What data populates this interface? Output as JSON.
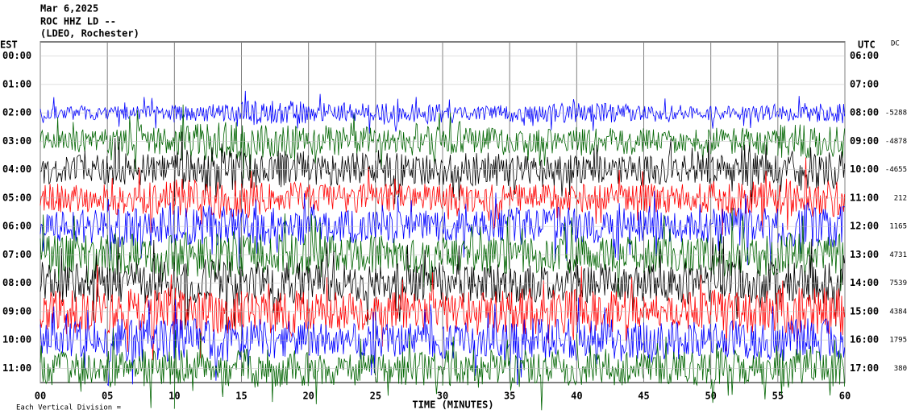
{
  "chart_data": {
    "type": "helicorder",
    "title_lines": [
      "Mar 6,2025",
      "ROC HHZ LD --",
      "(LDEO, Rochester)"
    ],
    "left_axis_title": "EST",
    "right_axis_title": "UTC",
    "dc_title": "DC",
    "x_title": "TIME (MINUTES)",
    "footer": "Each Vertical Division =",
    "xticks": [
      {
        "value": 0,
        "label": "00"
      },
      {
        "value": 5,
        "label": "05"
      },
      10,
      15,
      20,
      25,
      30,
      35,
      40,
      45,
      50,
      55,
      60
    ],
    "xlim": [
      0,
      60
    ],
    "rows": [
      {
        "est": "00:00",
        "utc": "06:00",
        "dc": null,
        "color": "#000000",
        "amplitude": null
      },
      {
        "est": "01:00",
        "utc": "07:00",
        "dc": null,
        "color": "#ff0000",
        "amplitude": null
      },
      {
        "est": "02:00",
        "utc": "08:00",
        "dc": "-5288",
        "color": "#0000ff",
        "amplitude": [
          3,
          3,
          4,
          5,
          4,
          4,
          3,
          4,
          4,
          3,
          3,
          4
        ]
      },
      {
        "est": "03:00",
        "utc": "09:00",
        "dc": "-4878",
        "color": "#006400",
        "amplitude": [
          5,
          6,
          8,
          7,
          6,
          6,
          6,
          5,
          6,
          5,
          6,
          7
        ]
      },
      {
        "est": "04:00",
        "utc": "10:00",
        "dc": "-4655",
        "color": "#000000",
        "amplitude": [
          6,
          7,
          9,
          8,
          7,
          7,
          7,
          6,
          6,
          6,
          7,
          8
        ]
      },
      {
        "est": "05:00",
        "utc": "11:00",
        "dc": "212",
        "color": "#ff0000",
        "amplitude": [
          6,
          7,
          8,
          7,
          6,
          6,
          6,
          6,
          6,
          6,
          7,
          8
        ]
      },
      {
        "est": "06:00",
        "utc": "12:00",
        "dc": "1165",
        "color": "#0000ff",
        "amplitude": [
          7,
          8,
          9,
          8,
          7,
          7,
          7,
          8,
          7,
          7,
          8,
          9
        ]
      },
      {
        "est": "07:00",
        "utc": "13:00",
        "dc": "4731",
        "color": "#006400",
        "amplitude": [
          8,
          9,
          10,
          9,
          8,
          8,
          8,
          8,
          8,
          8,
          9,
          9
        ]
      },
      {
        "est": "08:00",
        "utc": "14:00",
        "dc": "7539",
        "color": "#000000",
        "amplitude": [
          8,
          9,
          10,
          9,
          8,
          8,
          8,
          8,
          8,
          8,
          9,
          9
        ]
      },
      {
        "est": "09:00",
        "utc": "15:00",
        "dc": "4384",
        "color": "#ff0000",
        "amplitude": [
          9,
          10,
          10,
          9,
          8,
          8,
          9,
          10,
          9,
          8,
          9,
          10
        ]
      },
      {
        "est": "10:00",
        "utc": "16:00",
        "dc": "1795",
        "color": "#0000ff",
        "amplitude": [
          8,
          9,
          9,
          8,
          7,
          7,
          8,
          9,
          8,
          8,
          8,
          9
        ]
      },
      {
        "est": "11:00",
        "utc": "17:00",
        "dc": "380",
        "color": "#006400",
        "amplitude": [
          7,
          8,
          8,
          8,
          7,
          7,
          8,
          8,
          7,
          7,
          8,
          8
        ]
      }
    ]
  }
}
